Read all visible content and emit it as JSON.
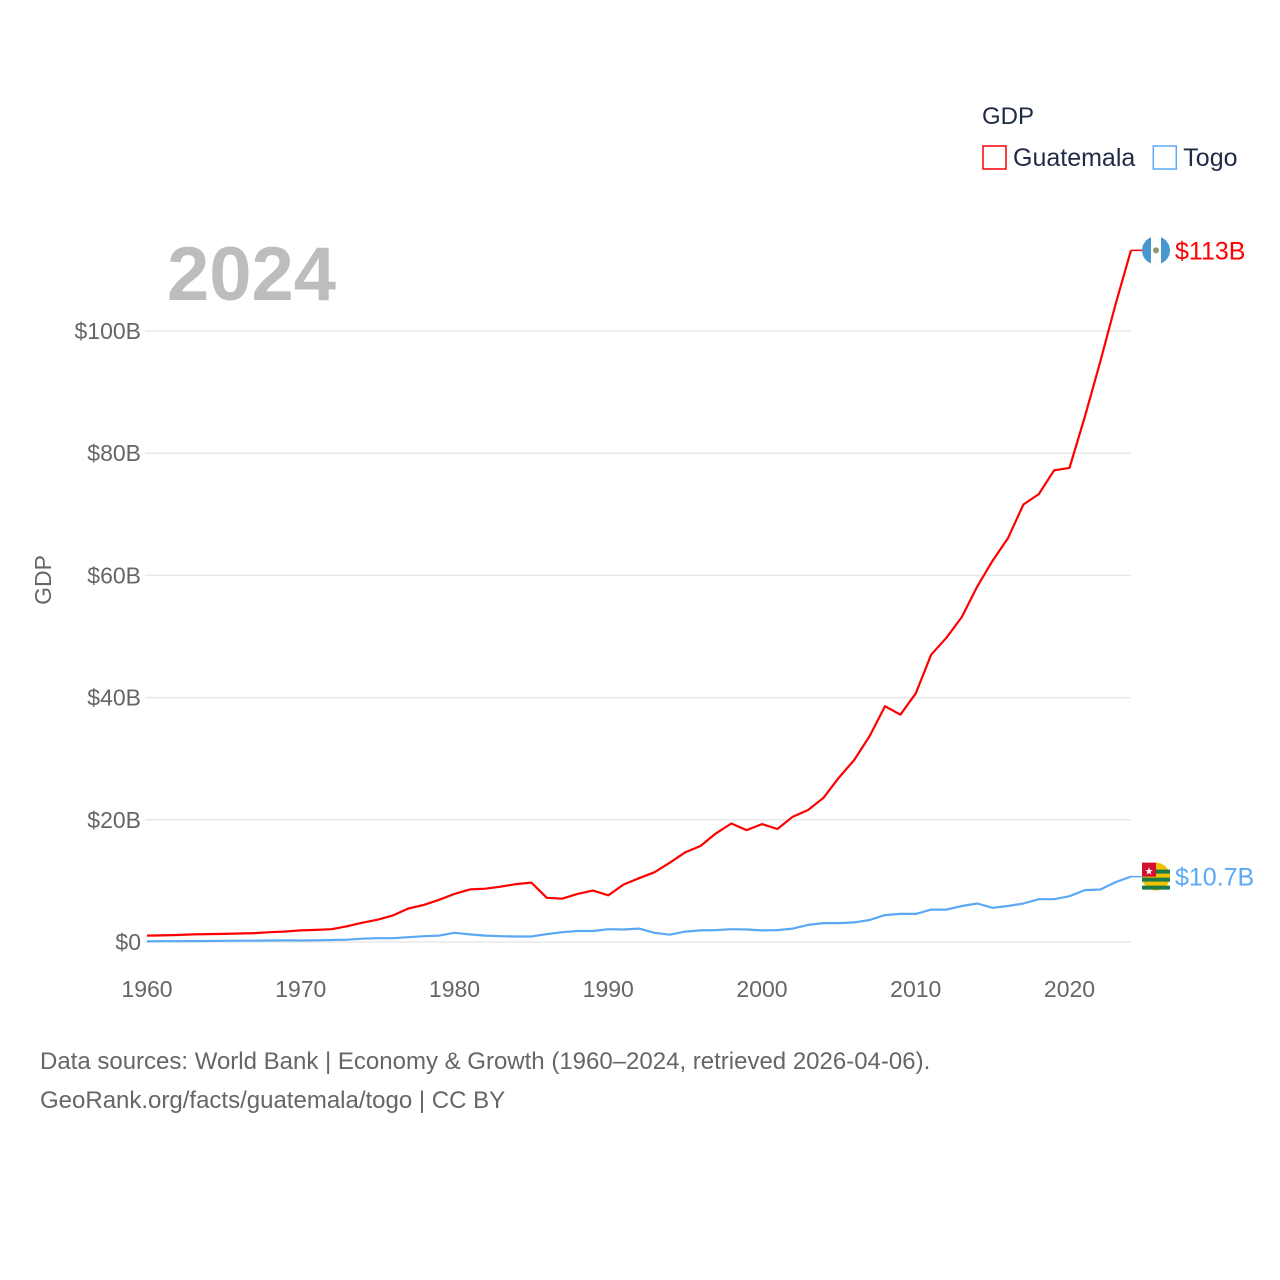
{
  "chart_data": {
    "type": "line",
    "title": "",
    "ylabel": "GDP",
    "xlabel": "",
    "xlim": [
      1960,
      2024
    ],
    "ylim": [
      0,
      100
    ],
    "grid": true,
    "x_ticks": [
      1960,
      1970,
      1980,
      1990,
      2000,
      2010,
      2020
    ],
    "x_tick_labels": [
      "1960",
      "1970",
      "1980",
      "1990",
      "2000",
      "2010",
      "2020"
    ],
    "y_ticks": [
      0,
      20,
      40,
      60,
      80,
      100
    ],
    "y_tick_labels": [
      "$0",
      "$20B",
      "$40B",
      "$60B",
      "$80B",
      "$100B"
    ],
    "year_label": "2024",
    "legend": {
      "title": "GDP",
      "placement": "top-right"
    },
    "x": [
      1960,
      1961,
      1962,
      1963,
      1964,
      1965,
      1966,
      1967,
      1968,
      1969,
      1970,
      1971,
      1972,
      1973,
      1974,
      1975,
      1976,
      1977,
      1978,
      1979,
      1980,
      1981,
      1982,
      1983,
      1984,
      1985,
      1986,
      1987,
      1988,
      1989,
      1990,
      1991,
      1992,
      1993,
      1994,
      1995,
      1996,
      1997,
      1998,
      1999,
      2000,
      2001,
      2002,
      2003,
      2004,
      2005,
      2006,
      2007,
      2008,
      2009,
      2010,
      2011,
      2012,
      2013,
      2014,
      2015,
      2016,
      2017,
      2018,
      2019,
      2020,
      2021,
      2022,
      2023,
      2024
    ],
    "series": [
      {
        "name": "Guatemala",
        "color": "#ff0000",
        "end_label": "$113B",
        "values": [
          1.04,
          1.08,
          1.14,
          1.24,
          1.3,
          1.33,
          1.39,
          1.45,
          1.6,
          1.72,
          1.9,
          1.98,
          2.1,
          2.57,
          3.16,
          3.65,
          4.36,
          5.48,
          6.07,
          6.9,
          7.88,
          8.61,
          8.72,
          9.05,
          9.47,
          9.72,
          7.23,
          7.08,
          7.87,
          8.42,
          7.65,
          9.41,
          10.44,
          11.4,
          12.98,
          14.66,
          15.71,
          17.78,
          19.39,
          18.32,
          19.29,
          18.5,
          20.5,
          21.6,
          23.6,
          26.9,
          29.8,
          33.7,
          38.6,
          37.2,
          40.7,
          47.0,
          49.8,
          53.2,
          58.2,
          62.4,
          66.1,
          71.6,
          73.3,
          77.2,
          77.6,
          86.0,
          95.0,
          104.4,
          113.2
        ]
      },
      {
        "name": "Togo",
        "color": "#5ba8f5",
        "end_label": "$10.7B",
        "values": [
          0.12,
          0.13,
          0.13,
          0.14,
          0.17,
          0.19,
          0.21,
          0.22,
          0.24,
          0.27,
          0.25,
          0.28,
          0.32,
          0.37,
          0.54,
          0.62,
          0.63,
          0.79,
          0.95,
          1.05,
          1.5,
          1.25,
          1.05,
          0.95,
          0.9,
          0.9,
          1.3,
          1.6,
          1.8,
          1.8,
          2.1,
          2.05,
          2.2,
          1.5,
          1.2,
          1.7,
          1.9,
          1.95,
          2.1,
          2.05,
          1.9,
          1.95,
          2.2,
          2.8,
          3.1,
          3.1,
          3.2,
          3.6,
          4.4,
          4.6,
          4.6,
          5.3,
          5.3,
          5.9,
          6.3,
          5.6,
          5.9,
          6.3,
          7.0,
          7.0,
          7.5,
          8.5,
          8.6,
          9.8,
          10.7
        ]
      }
    ]
  },
  "footer": {
    "line1": "Data sources: World Bank | Economy & Growth (1960–2024, retrieved 2026-04-06).",
    "line2": "GeoRank.org/facts/guatemala/togo | CC BY"
  }
}
